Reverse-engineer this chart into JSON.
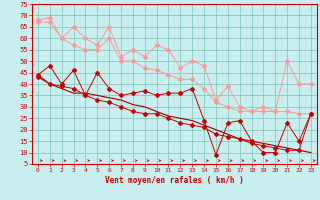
{
  "xlabel": "Vent moyen/en rafales ( km/h )",
  "xlim": [
    -0.5,
    23.5
  ],
  "ylim": [
    5,
    75
  ],
  "yticks": [
    5,
    10,
    15,
    20,
    25,
    30,
    35,
    40,
    45,
    50,
    55,
    60,
    65,
    70,
    75
  ],
  "xticks": [
    0,
    1,
    2,
    3,
    4,
    5,
    6,
    7,
    8,
    9,
    10,
    11,
    12,
    13,
    14,
    15,
    16,
    17,
    18,
    19,
    20,
    21,
    22,
    23
  ],
  "bg_color": "#c8eef0",
  "grid_color": "#88ccbb",
  "pink_color": "#ff9999",
  "red_color": "#cc0000",
  "darkred_color": "#990000",
  "series1_y": [
    68,
    69,
    60,
    65,
    60,
    57,
    65,
    52,
    55,
    52,
    57,
    55,
    47,
    50,
    48,
    33,
    39,
    30,
    28,
    30,
    28,
    50,
    40,
    40
  ],
  "series2_y": [
    67,
    67,
    60,
    57,
    55,
    55,
    60,
    50,
    50,
    47,
    46,
    44,
    42,
    42,
    38,
    32,
    30,
    28,
    28,
    28,
    28,
    28,
    27,
    27
  ],
  "series3_y": [
    44,
    48,
    40,
    46,
    35,
    45,
    38,
    35,
    36,
    37,
    35,
    36,
    36,
    38,
    24,
    9,
    23,
    24,
    15,
    10,
    10,
    23,
    15,
    27
  ],
  "series4_y": [
    43,
    40,
    39,
    38,
    35,
    33,
    32,
    30,
    28,
    27,
    27,
    25,
    23,
    22,
    21,
    18,
    17,
    16,
    14,
    13,
    12,
    11,
    11,
    27
  ],
  "series5_y": [
    44,
    40,
    38,
    36,
    36,
    35,
    34,
    33,
    31,
    30,
    28,
    26,
    25,
    24,
    22,
    20,
    18,
    16,
    15,
    14,
    13,
    12,
    11,
    10
  ]
}
